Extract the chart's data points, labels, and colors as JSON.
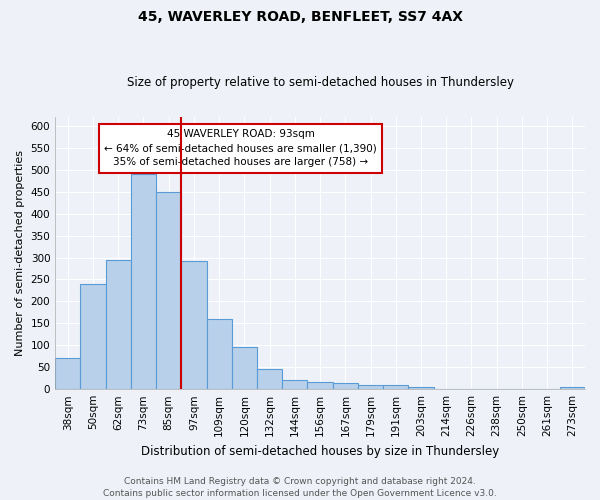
{
  "title1": "45, WAVERLEY ROAD, BENFLEET, SS7 4AX",
  "title2": "Size of property relative to semi-detached houses in Thundersley",
  "xlabel": "Distribution of semi-detached houses by size in Thundersley",
  "ylabel": "Number of semi-detached properties",
  "categories": [
    "38sqm",
    "50sqm",
    "62sqm",
    "73sqm",
    "85sqm",
    "97sqm",
    "109sqm",
    "120sqm",
    "132sqm",
    "144sqm",
    "156sqm",
    "167sqm",
    "179sqm",
    "191sqm",
    "203sqm",
    "214sqm",
    "226sqm",
    "238sqm",
    "250sqm",
    "261sqm",
    "273sqm"
  ],
  "values": [
    70,
    240,
    295,
    490,
    450,
    293,
    160,
    95,
    47,
    20,
    17,
    14,
    9,
    9,
    5,
    0,
    0,
    0,
    0,
    0,
    5
  ],
  "bar_color": "#b8d0ea",
  "bar_edge_color": "#5b9bd5",
  "vline_color": "#cc0000",
  "annotation_line1": "45 WAVERLEY ROAD: 93sqm",
  "annotation_line2": "← 64% of semi-detached houses are smaller (1,390)",
  "annotation_line3": "35% of semi-detached houses are larger (758) →",
  "annotation_box_color": "#ffffff",
  "annotation_box_edge": "#cc0000",
  "ylim": [
    0,
    620
  ],
  "yticks": [
    0,
    50,
    100,
    150,
    200,
    250,
    300,
    350,
    400,
    450,
    500,
    550,
    600
  ],
  "footer_line1": "Contains HM Land Registry data © Crown copyright and database right 2024.",
  "footer_line2": "Contains public sector information licensed under the Open Government Licence v3.0.",
  "bg_color": "#eef2f8",
  "grid_color": "#ffffff",
  "title1_fontsize": 10,
  "title2_fontsize": 8.5,
  "ylabel_fontsize": 8,
  "xlabel_fontsize": 8.5,
  "tick_fontsize": 7.5,
  "footer_fontsize": 6.5
}
